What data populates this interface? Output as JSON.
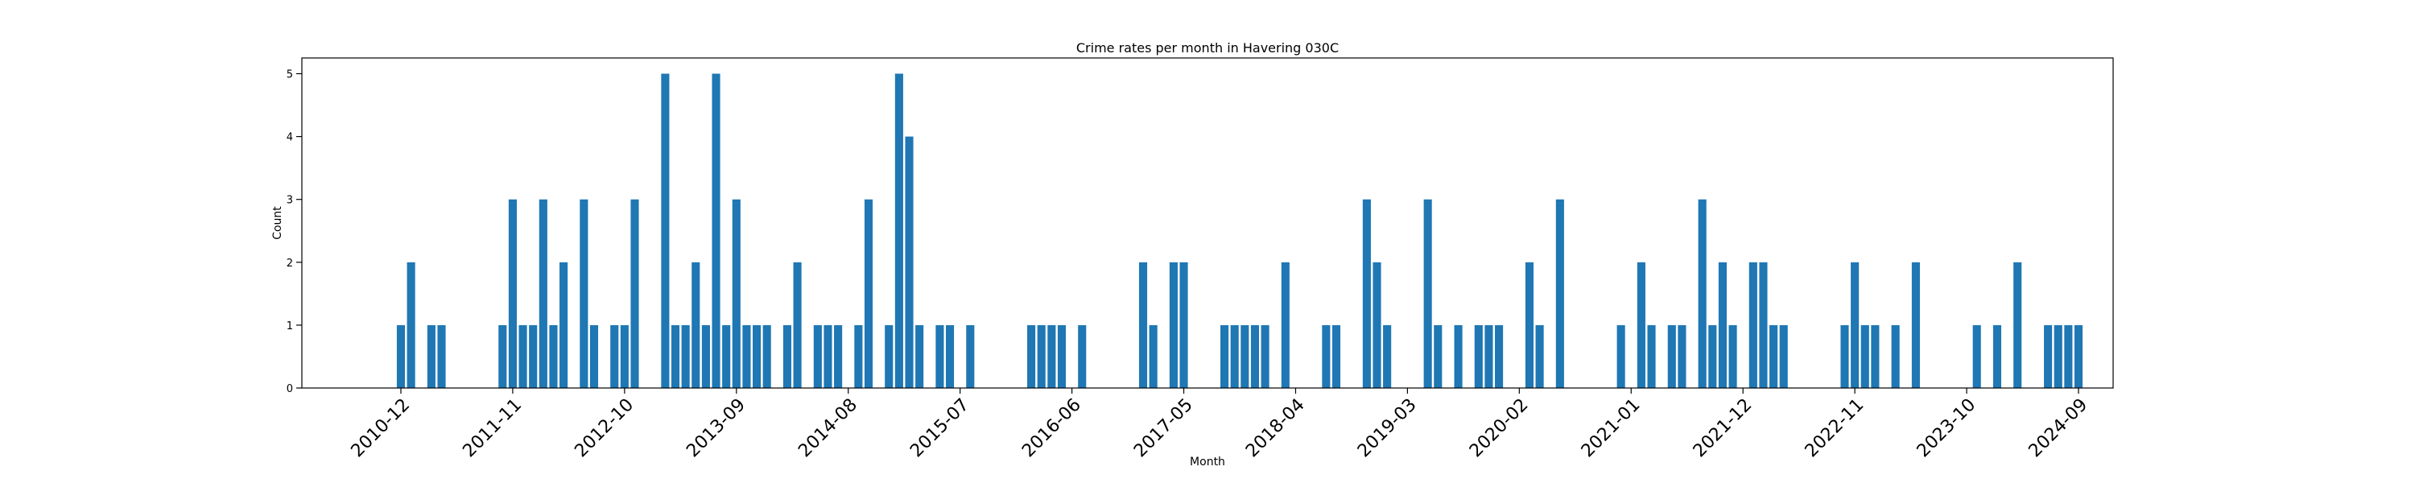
{
  "chart_data": {
    "type": "bar",
    "title": "Crime rates per month in Havering 030C",
    "xlabel": "Month",
    "ylabel": "Count",
    "ylim": [
      0,
      5.25
    ],
    "yticks": [
      0,
      1,
      2,
      3,
      4,
      5
    ],
    "xticks": [
      "2010-12",
      "2011-11",
      "2012-10",
      "2013-09",
      "2014-08",
      "2015-07",
      "2016-06",
      "2017-05",
      "2018-04",
      "2019-03",
      "2020-02",
      "2021-01",
      "2021-12",
      "2022-11",
      "2023-10",
      "2024-09"
    ],
    "bar_color": "#1f77b4",
    "grid": false,
    "legend": "none",
    "categories": [
      "2010-12",
      "2011-01",
      "2011-03",
      "2011-04",
      "2011-10",
      "2011-11",
      "2011-12",
      "2012-01",
      "2012-02",
      "2012-03",
      "2012-04",
      "2012-06",
      "2012-07",
      "2012-09",
      "2012-10",
      "2012-11",
      "2013-02",
      "2013-03",
      "2013-04",
      "2013-05",
      "2013-06",
      "2013-07",
      "2013-08",
      "2013-09",
      "2013-10",
      "2013-11",
      "2013-12",
      "2014-02",
      "2014-03",
      "2014-05",
      "2014-06",
      "2014-07",
      "2014-09",
      "2014-10",
      "2014-12",
      "2015-01",
      "2015-02",
      "2015-03",
      "2015-05",
      "2015-06",
      "2015-08",
      "2016-02",
      "2016-03",
      "2016-04",
      "2016-05",
      "2016-07",
      "2017-01",
      "2017-02",
      "2017-04",
      "2017-05",
      "2017-09",
      "2017-10",
      "2017-11",
      "2017-12",
      "2018-01",
      "2018-03",
      "2018-07",
      "2018-08",
      "2018-11",
      "2018-12",
      "2019-01",
      "2019-05",
      "2019-06",
      "2019-08",
      "2019-10",
      "2019-11",
      "2019-12",
      "2020-03",
      "2020-04",
      "2020-06",
      "2020-12",
      "2021-02",
      "2021-03",
      "2021-05",
      "2021-06",
      "2021-08",
      "2021-09",
      "2021-10",
      "2021-11",
      "2022-01",
      "2022-02",
      "2022-03",
      "2022-04",
      "2022-10",
      "2022-11",
      "2022-12",
      "2023-01",
      "2023-03",
      "2023-05",
      "2023-11",
      "2024-01",
      "2024-03",
      "2024-06",
      "2024-07",
      "2024-08",
      "2024-09"
    ],
    "values": [
      1,
      2,
      1,
      1,
      1,
      3,
      1,
      1,
      3,
      1,
      2,
      3,
      1,
      1,
      1,
      3,
      5,
      1,
      1,
      2,
      1,
      5,
      1,
      3,
      1,
      1,
      1,
      1,
      2,
      1,
      1,
      1,
      1,
      3,
      1,
      5,
      4,
      1,
      1,
      1,
      1,
      1,
      1,
      1,
      1,
      1,
      2,
      1,
      2,
      2,
      1,
      1,
      1,
      1,
      1,
      2,
      1,
      1,
      3,
      2,
      1,
      3,
      1,
      1,
      1,
      1,
      1,
      2,
      1,
      3,
      1,
      2,
      1,
      1,
      1,
      3,
      1,
      2,
      1,
      2,
      2,
      1,
      1,
      1,
      2,
      1,
      1,
      1,
      2,
      1,
      1,
      2,
      1,
      1,
      1,
      1
    ]
  }
}
